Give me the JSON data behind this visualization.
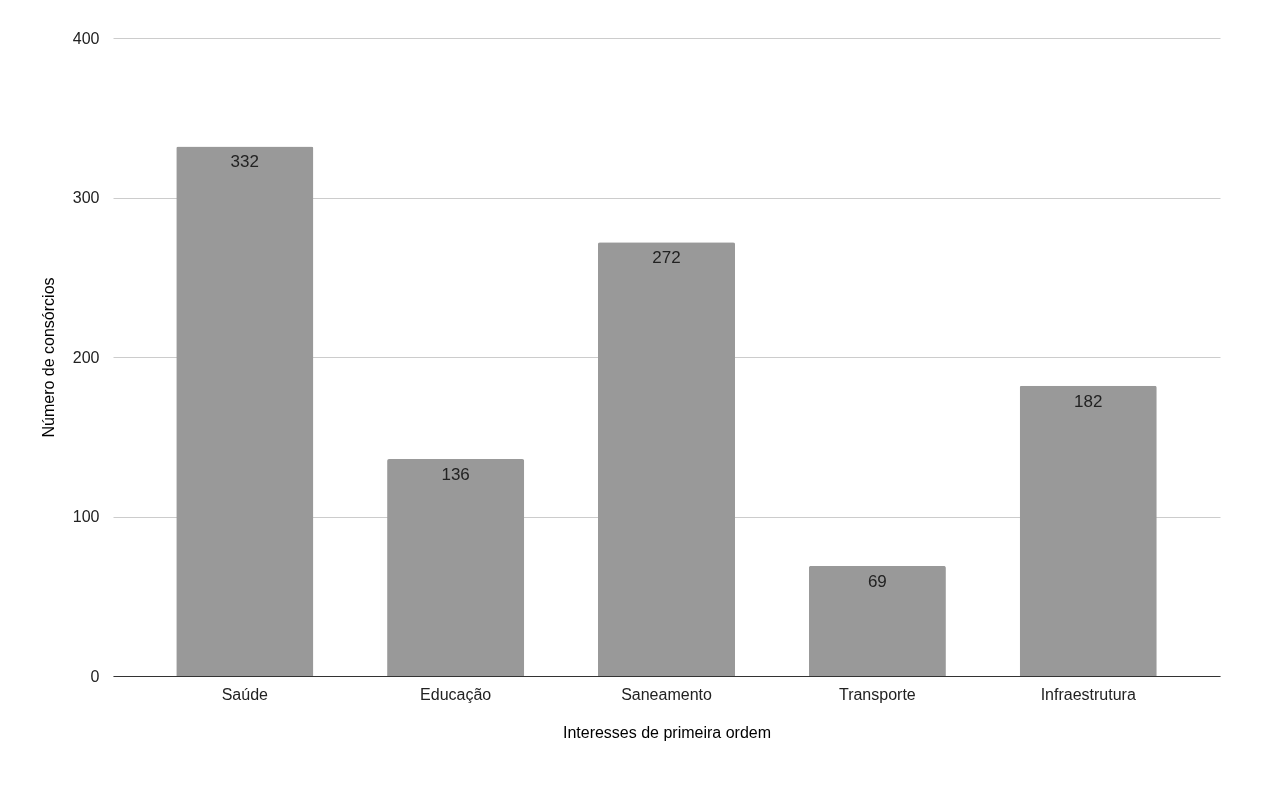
{
  "chart_data": {
    "type": "bar",
    "categories": [
      "Saúde",
      "Educação",
      "Saneamento",
      "Transporte",
      "Infraestrutura"
    ],
    "values": [
      332,
      136,
      272,
      69,
      182
    ],
    "color": "#999999",
    "xlabel": "Interesses de primeira ordem",
    "ylabel": "Número de consórcios",
    "ylim": [
      0,
      400
    ],
    "yticks": [
      0,
      100,
      200,
      300,
      400
    ],
    "grid": "y",
    "data_labels": true
  }
}
